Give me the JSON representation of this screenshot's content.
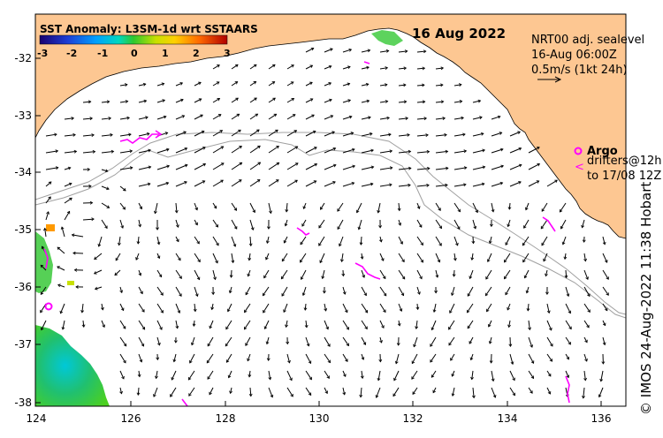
{
  "map": {
    "colorbar_title": "SST Anomaly: L3SM-1d wrt SSTAARS",
    "colorbar_ticks": [
      "-3",
      "-2",
      "-1",
      "0",
      "1",
      "2",
      "3"
    ],
    "date": "16 Aug 2022",
    "current_info": {
      "line1": "NRT00 adj. sealevel",
      "line2": "16-Aug 06:00Z",
      "line3": "0.5m/s (1kt 24h)"
    },
    "argo_label": "Argo",
    "drifters_line1": "drifters@12h",
    "drifters_line2": "to 17/08 12Z",
    "credit": "© IMOS 24-Aug-2022 11:38 Hobart",
    "lat_ticks": [
      "-32",
      "-33",
      "-34",
      "-35",
      "-36",
      "-37",
      "-38"
    ],
    "lon_ticks": [
      "124",
      "126",
      "128",
      "130",
      "132",
      "134",
      "136"
    ],
    "colors": {
      "land": "#fdc792",
      "argo": "#ff00ff",
      "bathymetry": "#a0a0a0"
    }
  }
}
